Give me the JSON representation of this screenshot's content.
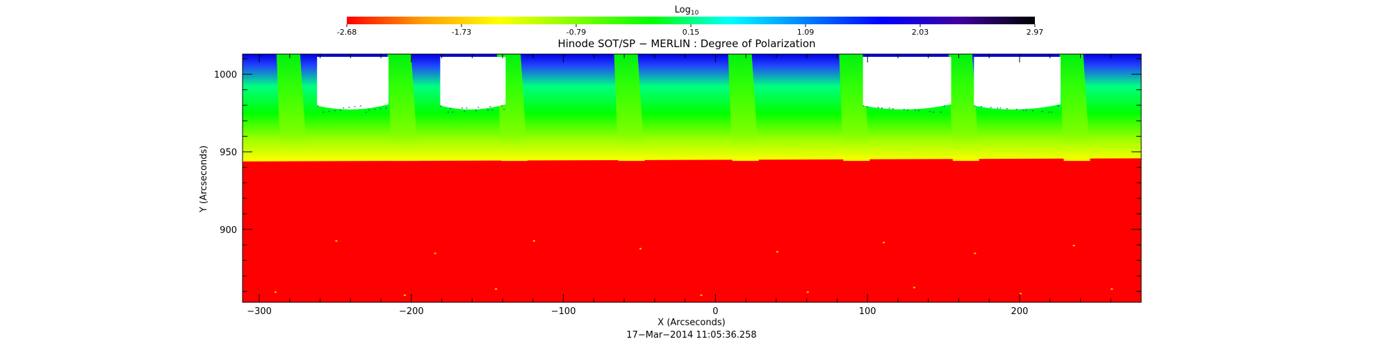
{
  "colorbar": {
    "label": "Log",
    "label_subscript": "10",
    "ticks": [
      "-2.68",
      "-1.73",
      "-0.79",
      "0.15",
      "1.09",
      "2.03",
      "2.97"
    ],
    "colormap": [
      "#ff0000",
      "#ffa000",
      "#ffff00",
      "#80ff00",
      "#00ff00",
      "#00ffff",
      "#0080ff",
      "#0000ff",
      "#4000a0",
      "#000000"
    ]
  },
  "chart_data": {
    "type": "heatmap",
    "title": "Hinode SOT/SP − MERLIN : Degree of Polarization",
    "xlabel": "X (Arcseconds)",
    "ylabel": "Y (Arcseconds)",
    "xlim": [
      -311,
      280
    ],
    "ylim": [
      853,
      1013
    ],
    "xticks": [
      -300,
      -200,
      -100,
      0,
      100,
      200
    ],
    "xtick_labels": [
      "−300",
      "−200",
      "−100",
      "0",
      "100",
      "200"
    ],
    "yticks": [
      900,
      950,
      1000
    ],
    "ytick_labels": [
      "900",
      "950",
      "1000"
    ],
    "colorbar_range": [
      -2.68,
      2.97
    ],
    "limb_y": 945,
    "vertical_bands_x": [
      -285,
      -212,
      -140,
      -63,
      12,
      85,
      157,
      230
    ],
    "off_scale_gaps_x": [
      [
        -262,
        -215
      ],
      [
        -181,
        -138
      ],
      [
        97,
        155
      ],
      [
        170,
        227
      ]
    ],
    "timestamp": "17−Mar−2014 11:05:36.258"
  }
}
